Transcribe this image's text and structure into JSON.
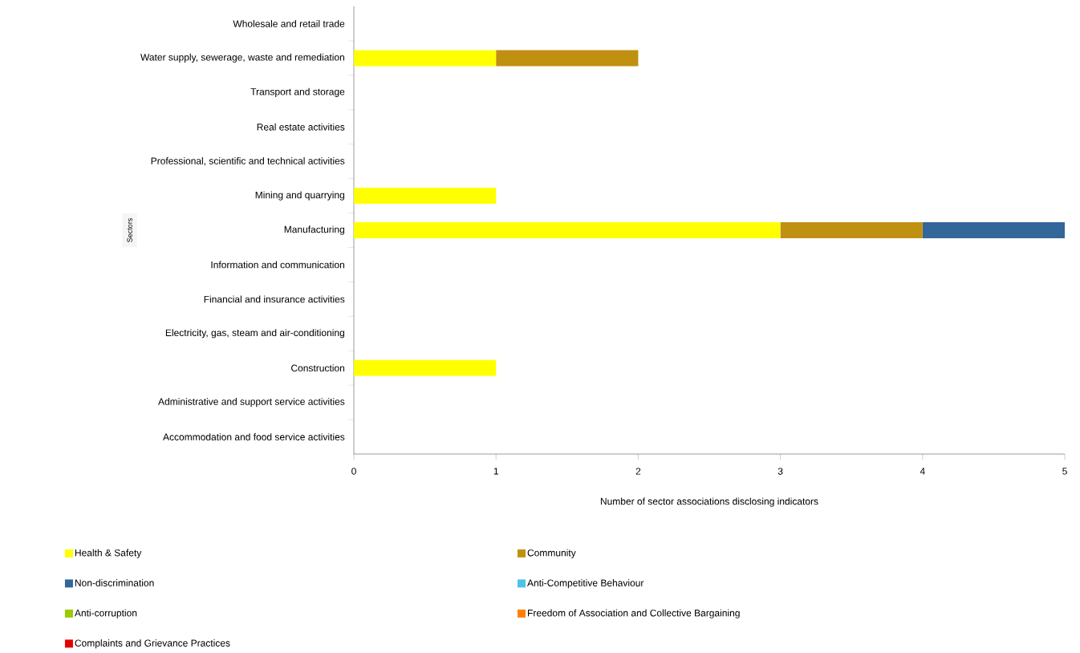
{
  "chart_data": {
    "type": "bar",
    "orientation": "horizontal",
    "stacked": true,
    "xlabel": "Number of sector associations disclosing indicators",
    "ylabel": "Sectors",
    "categories": [
      "Wholesale and retail trade",
      "Water supply, sewerage, waste and remediation",
      "Transport and storage",
      "Real estate activities",
      "Professional, scientific and technical activities",
      "Mining and quarrying",
      "Manufacturing",
      "Information and communication",
      "Financial and insurance activities",
      "Electricity, gas, steam and air-conditioning",
      "Construction",
      "Administrative and support service activities",
      "Accommodation and food service activities"
    ],
    "series": [
      {
        "name": "Health & Safety",
        "color": "#ffff00",
        "values": [
          0,
          1,
          0,
          0,
          0,
          1,
          3,
          0,
          0,
          0,
          1,
          0,
          0
        ]
      },
      {
        "name": "Community",
        "color": "#c09010",
        "values": [
          0,
          1,
          0,
          0,
          0,
          0,
          1,
          0,
          0,
          0,
          0,
          0,
          0
        ]
      },
      {
        "name": "Non-discrimination",
        "color": "#336699",
        "values": [
          0,
          0,
          0,
          0,
          0,
          0,
          1,
          0,
          0,
          0,
          0,
          0,
          0
        ]
      },
      {
        "name": "Anti-Competitive Behaviour",
        "color": "#4dc3e6",
        "values": [
          0,
          0,
          0,
          0,
          0,
          0,
          0,
          0,
          0,
          0,
          0,
          0,
          0
        ]
      },
      {
        "name": "Anti-corruption",
        "color": "#99cc00",
        "values": [
          0,
          0,
          0,
          0,
          0,
          0,
          0,
          0,
          0,
          0,
          0,
          0,
          0
        ]
      },
      {
        "name": "Freedom of Association and Collective Bargaining",
        "color": "#ff8000",
        "values": [
          0,
          0,
          0,
          0,
          0,
          0,
          0,
          0,
          0,
          0,
          0,
          0,
          0
        ]
      },
      {
        "name": "Complaints and Grievance Practices",
        "color": "#e60000",
        "values": [
          0,
          0,
          0,
          0,
          0,
          0,
          0,
          0,
          0,
          0,
          0,
          0,
          0
        ]
      }
    ],
    "xlim": [
      0,
      5
    ],
    "xticks": [
      0,
      1,
      2,
      3,
      4,
      5
    ],
    "legend": "bottom"
  }
}
